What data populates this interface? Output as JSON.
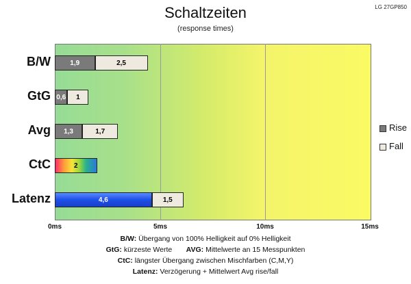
{
  "chart_data": {
    "type": "bar",
    "orientation": "horizontal",
    "stacked": true,
    "title": "Schaltzeiten",
    "subtitle": "(response times)",
    "model": "LG 27GP850",
    "xlabel": "",
    "ylabel": "",
    "xlim": [
      0,
      15
    ],
    "x_ticks": [
      "0ms",
      "5ms",
      "10ms",
      "15ms"
    ],
    "categories": [
      "B/W",
      "GtG",
      "Avg",
      "CtC",
      "Latenz"
    ],
    "series": [
      {
        "name": "Rise",
        "values": [
          1.9,
          0.6,
          1.3,
          null,
          null
        ],
        "labels": [
          "1,9",
          "0,6",
          "1,3",
          "",
          ""
        ]
      },
      {
        "name": "Fall",
        "values": [
          2.5,
          1.0,
          1.7,
          null,
          null
        ],
        "labels": [
          "2,5",
          "1",
          "1,7",
          "",
          ""
        ]
      }
    ],
    "ctc": {
      "value": 2.0,
      "label": "2"
    },
    "latenz": {
      "delay": 4.6,
      "delay_label": "4,6",
      "avg": 1.5,
      "avg_label": "1,5"
    },
    "legend": [
      {
        "name": "Rise",
        "color": "#7a7a7a"
      },
      {
        "name": "Fall",
        "color": "#eeeae0"
      }
    ],
    "legend_position": "right"
  },
  "notes": {
    "bw_key": "B/W:",
    "bw_text": "Übergang von 100% Helligkeit auf 0% Helligkeit",
    "gtg_key": "GtG:",
    "gtg_text": "kürzeste  Werte",
    "avg_key": "AVG:",
    "avg_text": "Mittelwerte  an 15 Messpunkten",
    "ctc_key": "CtC:",
    "ctc_text": "längster Übergang  zwischen Mischfarben  (C,M,Y)",
    "latenz_key": "Latenz:",
    "latenz_text": "Verzögerung  + Mittelwert  Avg rise/fall"
  },
  "colors": {
    "rise": "#7a7a7a",
    "fall": "#eeeae0",
    "latenz": "#1e50e8"
  }
}
